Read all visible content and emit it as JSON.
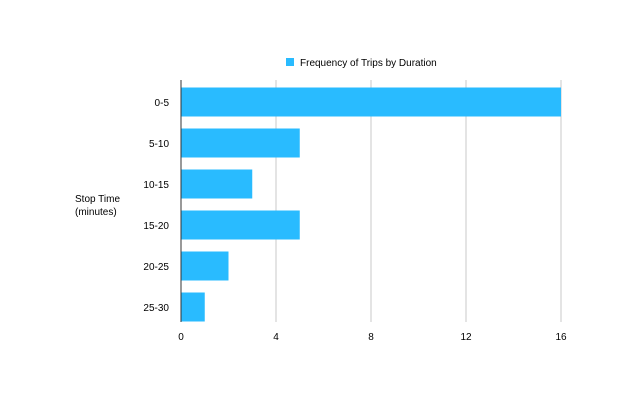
{
  "chart_data": {
    "type": "bar",
    "orientation": "horizontal",
    "title": "",
    "ylabel_lines": [
      "Stop Time",
      "(minutes)"
    ],
    "xlabel": "",
    "categories": [
      "0-5",
      "5-10",
      "10-15",
      "15-20",
      "20-25",
      "25-30"
    ],
    "series": [
      {
        "name": "Frequency of Trips by Duration",
        "values": [
          16,
          5,
          3,
          5,
          2,
          1
        ],
        "color": "#29BBFF"
      }
    ],
    "xlim": [
      0,
      16
    ],
    "xticks": [
      0,
      4,
      8,
      12,
      16
    ],
    "grid": true,
    "legend_position": "top"
  }
}
